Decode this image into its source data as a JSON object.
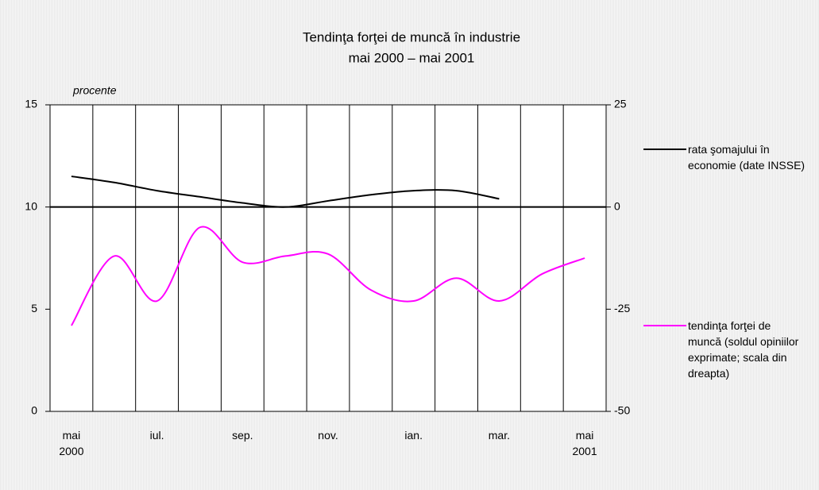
{
  "chart_data": {
    "type": "line",
    "title": "Tendinţa forţei de muncă în industrie",
    "subtitle": "mai 2000 – mai 2001",
    "ylabel": "procente",
    "categories": [
      "mai 2000",
      null,
      "iul.",
      null,
      "sep.",
      null,
      "nov.",
      null,
      "ian.",
      null,
      "mar.",
      null,
      "mai 2001"
    ],
    "ylim": [
      0,
      15
    ],
    "yticks": [
      0,
      5,
      10,
      15
    ],
    "y2lim": [
      -50,
      25
    ],
    "y2ticks": [
      -50,
      -25,
      0,
      25
    ],
    "series": [
      {
        "name": "rata şomajului în economie (date INSSE)",
        "color": "#000000",
        "values": [
          11.5,
          11.2,
          10.8,
          10.5,
          10.2,
          10.0,
          10.3,
          10.6,
          10.8,
          10.8,
          10.4,
          null,
          null
        ]
      },
      {
        "name": "tendinţa forţei de muncă (soldul opiniilor exprimate; scala din dreapta)",
        "color": "#ff00ff",
        "axis": "y2",
        "values": [
          -29,
          -12,
          -23,
          -5,
          -13.5,
          -12,
          -11.5,
          -20.3,
          -23,
          -17.4,
          -23,
          -16.4,
          -12.5
        ]
      }
    ]
  }
}
